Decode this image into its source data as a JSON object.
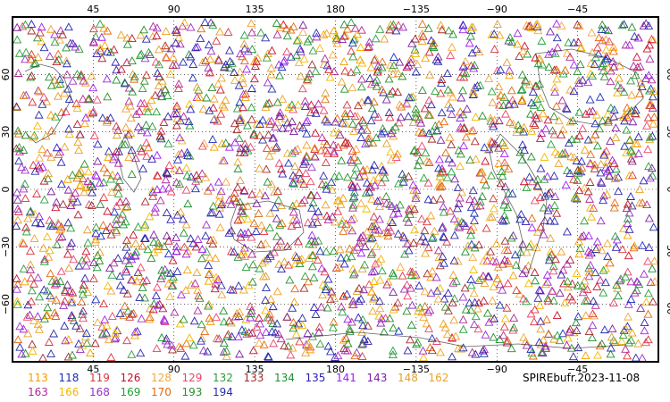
{
  "map": {
    "caption": "SPIREbufr.2023-11-08",
    "projection": "equirectangular",
    "center_longitude": 180,
    "longitude_ticks": [
      "45",
      "90",
      "135",
      "180",
      "−135",
      "−90",
      "−45"
    ],
    "latitude_ticks": [
      "60",
      "30",
      "0",
      "−30",
      "−60"
    ],
    "marker": "triangle-outline-icon",
    "grid": "dotted"
  },
  "legend": [
    {
      "label": "113",
      "color": "#f5a000"
    },
    {
      "label": "118",
      "color": "#1c2fb5"
    },
    {
      "label": "119",
      "color": "#d9363e"
    },
    {
      "label": "126",
      "color": "#c8102e"
    },
    {
      "label": "128",
      "color": "#f2a93b"
    },
    {
      "label": "129",
      "color": "#e8466b"
    },
    {
      "label": "132",
      "color": "#2e9e3a"
    },
    {
      "label": "133",
      "color": "#a52a2a"
    },
    {
      "label": "134",
      "color": "#1f8f2e"
    },
    {
      "label": "135",
      "color": "#2a1fb0"
    },
    {
      "label": "141",
      "color": "#a020f0"
    },
    {
      "label": "143",
      "color": "#7b1fa2"
    },
    {
      "label": "148",
      "color": "#e0a030"
    },
    {
      "label": "162",
      "color": "#f0a028"
    },
    {
      "label": "163",
      "color": "#b0279b"
    },
    {
      "label": "166",
      "color": "#f5b800"
    },
    {
      "label": "168",
      "color": "#9b30c8"
    },
    {
      "label": "169",
      "color": "#23a03a"
    },
    {
      "label": "170",
      "color": "#e06a10"
    },
    {
      "label": "193",
      "color": "#2d8f2d"
    },
    {
      "label": "194",
      "color": "#2b2ba8"
    }
  ]
}
